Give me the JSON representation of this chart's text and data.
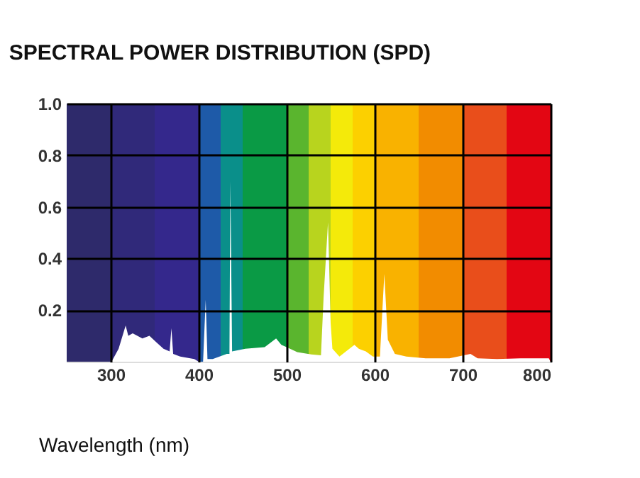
{
  "chart_data": {
    "type": "area",
    "title": "SPECTRAL POWER DISTRIBUTION (SPD)",
    "xlabel": "Wavelength (nm)",
    "x": [
      301,
      309,
      317,
      320,
      325,
      336,
      344,
      352,
      360,
      367,
      369,
      371,
      379,
      395,
      400,
      405,
      408,
      410,
      416,
      432,
      435,
      436,
      438,
      453,
      475,
      488,
      494,
      500,
      512,
      528,
      539,
      542,
      547,
      550,
      552,
      560,
      577,
      582,
      590,
      598,
      606,
      611,
      615,
      623,
      636,
      658,
      685,
      709,
      717,
      739,
      766,
      798,
      800
    ],
    "series": [
      {
        "color": "#ffffff",
        "values": [
          0,
          0.05,
          0.14,
          0.1,
          0.11,
          0.09,
          0.1,
          0.075,
          0.05,
          0.04,
          0.13,
          0.03,
          0.02,
          0.01,
          0,
          0,
          0.24,
          0.01,
          0.01,
          0.03,
          0.03,
          0.7,
          0.04,
          0.05,
          0.056,
          0.09,
          0.065,
          0.056,
          0.037,
          0.028,
          0.025,
          0.25,
          0.54,
          0.15,
          0.05,
          0.02,
          0.065,
          0.05,
          0.04,
          0.02,
          0.02,
          0.34,
          0.085,
          0.03,
          0.02,
          0.013,
          0.013,
          0.03,
          0.013,
          0.01,
          0.013,
          0.013,
          0
        ]
      }
    ],
    "xlim": [
      250,
      800
    ],
    "xticks": [
      300,
      400,
      500,
      600,
      700,
      800
    ],
    "ylim": [
      0,
      1.0
    ],
    "yticks": [
      0.2,
      0.4,
      0.6,
      0.8,
      {
        "value": 1.0,
        "label": "1.0"
      }
    ],
    "grid": true,
    "bands": [
      {
        "axis": "x",
        "from": 250,
        "to": 300,
        "color": "#2e2a6b"
      },
      {
        "axis": "x",
        "from": 300,
        "to": 350,
        "color": "#30297a"
      },
      {
        "axis": "x",
        "from": 350,
        "to": 400,
        "color": "#34288c"
      },
      {
        "axis": "x",
        "from": 400,
        "to": 425,
        "color": "#1e5aa8"
      },
      {
        "axis": "x",
        "from": 425,
        "to": 450,
        "color": "#0a8f8a"
      },
      {
        "axis": "x",
        "from": 450,
        "to": 500,
        "color": "#0a9a45"
      },
      {
        "axis": "x",
        "from": 500,
        "to": 525,
        "color": "#5ab52e"
      },
      {
        "axis": "x",
        "from": 525,
        "to": 550,
        "color": "#b8d41e"
      },
      {
        "axis": "x",
        "from": 550,
        "to": 575,
        "color": "#f4ea0a"
      },
      {
        "axis": "x",
        "from": 575,
        "to": 600,
        "color": "#fcd000"
      },
      {
        "axis": "x",
        "from": 600,
        "to": 650,
        "color": "#f9b200"
      },
      {
        "axis": "x",
        "from": 650,
        "to": 700,
        "color": "#f28c00"
      },
      {
        "axis": "x",
        "from": 700,
        "to": 750,
        "color": "#e94e1b"
      },
      {
        "axis": "x",
        "from": 750,
        "to": 800,
        "color": "#e30613"
      }
    ]
  }
}
